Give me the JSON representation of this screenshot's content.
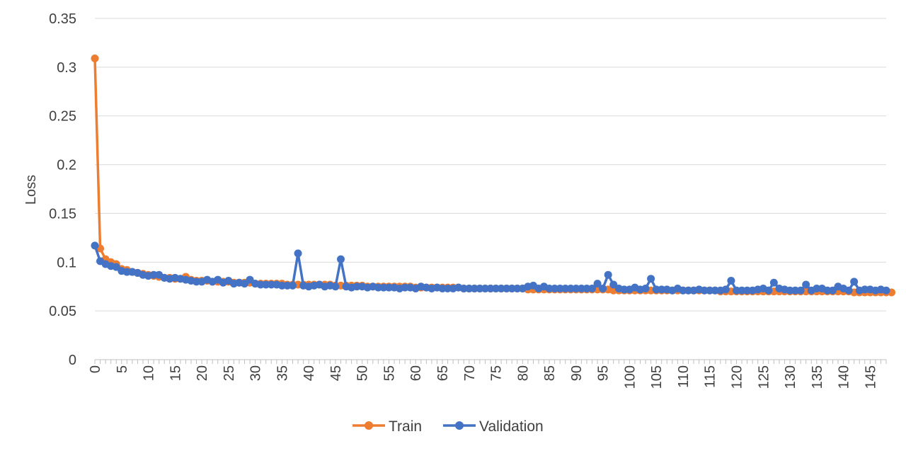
{
  "chart_data": {
    "type": "line",
    "title": "",
    "xlabel": "",
    "ylabel": "Loss",
    "ylim": [
      0,
      0.35
    ],
    "yticks": [
      "0",
      "0.05",
      "0.1",
      "0.15",
      "0.2",
      "0.25",
      "0.3",
      "0.35"
    ],
    "xlim": [
      0,
      148
    ],
    "xticks": [
      "0",
      "5",
      "10",
      "15",
      "20",
      "25",
      "30",
      "35",
      "40",
      "45",
      "50",
      "55",
      "60",
      "65",
      "70",
      "75",
      "80",
      "85",
      "90",
      "95",
      "100",
      "105",
      "110",
      "115",
      "120",
      "125",
      "130",
      "135",
      "140",
      "145"
    ],
    "grid": "horizontal",
    "legend_position": "bottom",
    "colors": {
      "Train": "#ed7d31",
      "Validation": "#4472c4"
    },
    "series": [
      {
        "name": "Train",
        "values": [
          0.309,
          0.114,
          0.103,
          0.1,
          0.098,
          0.093,
          0.092,
          0.09,
          0.089,
          0.088,
          0.087,
          0.086,
          0.085,
          0.084,
          0.084,
          0.083,
          0.083,
          0.085,
          0.082,
          0.081,
          0.081,
          0.081,
          0.08,
          0.08,
          0.08,
          0.08,
          0.079,
          0.079,
          0.079,
          0.079,
          0.078,
          0.078,
          0.078,
          0.078,
          0.078,
          0.078,
          0.077,
          0.077,
          0.077,
          0.077,
          0.077,
          0.077,
          0.077,
          0.077,
          0.077,
          0.076,
          0.076,
          0.076,
          0.076,
          0.076,
          0.076,
          0.075,
          0.075,
          0.075,
          0.075,
          0.075,
          0.075,
          0.075,
          0.075,
          0.075,
          0.074,
          0.074,
          0.074,
          0.074,
          0.074,
          0.074,
          0.074,
          0.074,
          0.074,
          0.073,
          0.073,
          0.073,
          0.073,
          0.073,
          0.073,
          0.073,
          0.073,
          0.073,
          0.073,
          0.073,
          0.073,
          0.072,
          0.072,
          0.072,
          0.072,
          0.072,
          0.072,
          0.072,
          0.072,
          0.072,
          0.072,
          0.072,
          0.072,
          0.072,
          0.072,
          0.072,
          0.072,
          0.071,
          0.071,
          0.071,
          0.071,
          0.071,
          0.071,
          0.071,
          0.071,
          0.071,
          0.071,
          0.071,
          0.071,
          0.071,
          0.071,
          0.071,
          0.071,
          0.071,
          0.071,
          0.071,
          0.071,
          0.07,
          0.07,
          0.07,
          0.07,
          0.07,
          0.07,
          0.07,
          0.07,
          0.07,
          0.07,
          0.07,
          0.07,
          0.07,
          0.07,
          0.07,
          0.07,
          0.07,
          0.07,
          0.07,
          0.07,
          0.07,
          0.07,
          0.07,
          0.07,
          0.07,
          0.069,
          0.069,
          0.069,
          0.069,
          0.069,
          0.069,
          0.069,
          0.069
        ]
      },
      {
        "name": "Validation",
        "values": [
          0.117,
          0.101,
          0.098,
          0.096,
          0.095,
          0.091,
          0.09,
          0.09,
          0.089,
          0.087,
          0.086,
          0.087,
          0.087,
          0.084,
          0.083,
          0.084,
          0.083,
          0.082,
          0.081,
          0.08,
          0.08,
          0.082,
          0.08,
          0.082,
          0.079,
          0.081,
          0.078,
          0.079,
          0.078,
          0.082,
          0.078,
          0.077,
          0.077,
          0.077,
          0.077,
          0.076,
          0.076,
          0.076,
          0.109,
          0.076,
          0.075,
          0.076,
          0.077,
          0.075,
          0.076,
          0.075,
          0.103,
          0.075,
          0.074,
          0.075,
          0.075,
          0.074,
          0.075,
          0.074,
          0.074,
          0.074,
          0.074,
          0.073,
          0.074,
          0.074,
          0.073,
          0.075,
          0.074,
          0.073,
          0.074,
          0.073,
          0.073,
          0.073,
          0.074,
          0.073,
          0.073,
          0.073,
          0.073,
          0.073,
          0.073,
          0.073,
          0.073,
          0.073,
          0.073,
          0.073,
          0.073,
          0.075,
          0.076,
          0.073,
          0.075,
          0.073,
          0.073,
          0.073,
          0.073,
          0.073,
          0.073,
          0.073,
          0.073,
          0.073,
          0.078,
          0.073,
          0.087,
          0.077,
          0.073,
          0.072,
          0.072,
          0.074,
          0.072,
          0.073,
          0.083,
          0.072,
          0.072,
          0.072,
          0.071,
          0.073,
          0.071,
          0.071,
          0.071,
          0.072,
          0.071,
          0.071,
          0.071,
          0.071,
          0.072,
          0.081,
          0.071,
          0.071,
          0.071,
          0.071,
          0.072,
          0.073,
          0.071,
          0.079,
          0.073,
          0.072,
          0.071,
          0.071,
          0.071,
          0.077,
          0.071,
          0.073,
          0.073,
          0.071,
          0.071,
          0.075,
          0.073,
          0.071,
          0.08,
          0.071,
          0.072,
          0.072,
          0.071,
          0.072,
          0.071
        ]
      }
    ]
  }
}
